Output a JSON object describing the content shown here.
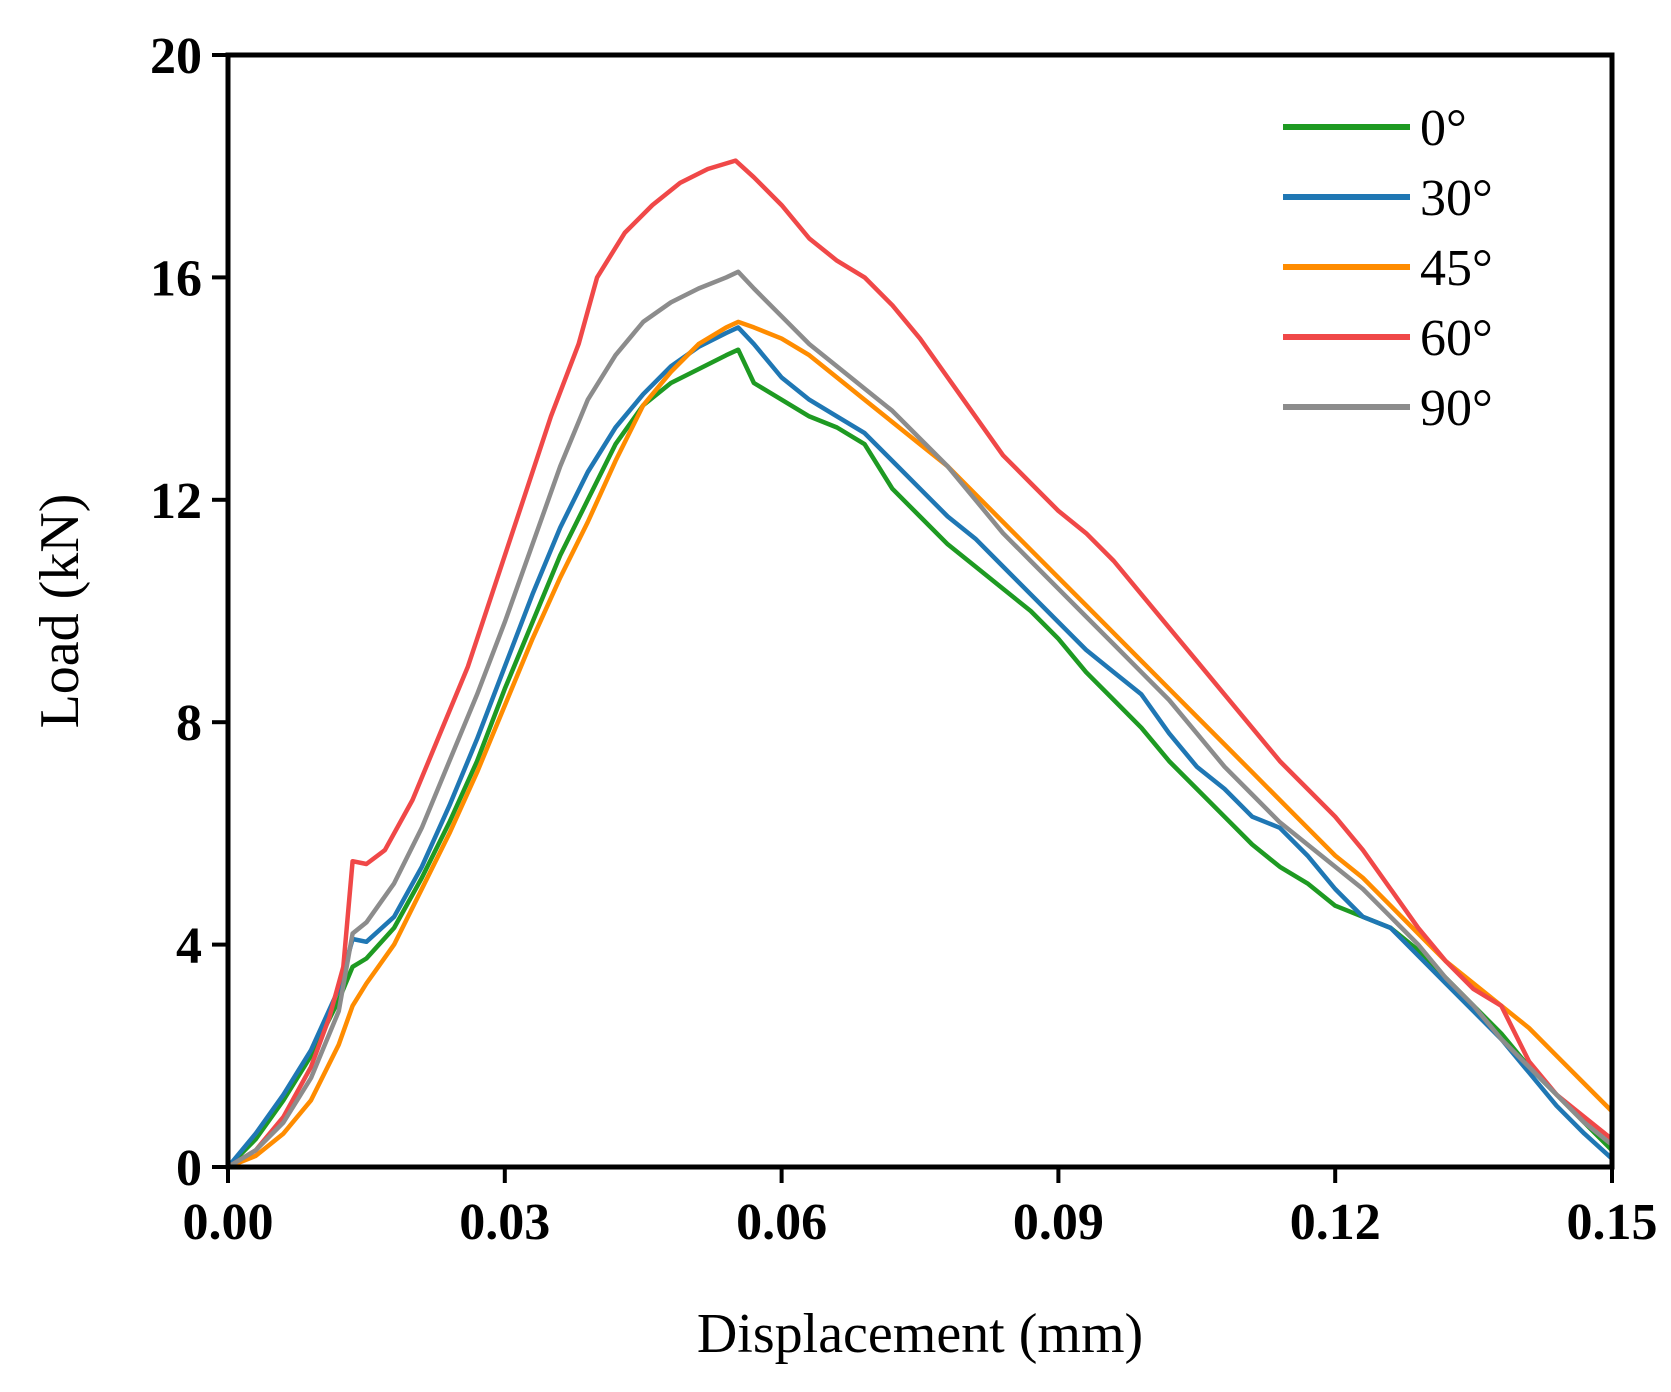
{
  "chart_data": {
    "type": "line",
    "title": "",
    "xlabel": "Displacement (mm)",
    "ylabel": "Load (kN)",
    "xlim": [
      0,
      0.15
    ],
    "ylim": [
      0,
      20
    ],
    "xticks": [
      0.0,
      0.03,
      0.06,
      0.09,
      0.12,
      0.15
    ],
    "xtick_labels": [
      "0.00",
      "0.03",
      "0.06",
      "0.09",
      "0.12",
      "0.15"
    ],
    "yticks": [
      0,
      4,
      8,
      12,
      16,
      20
    ],
    "ytick_labels": [
      "0",
      "4",
      "8",
      "12",
      "16",
      "20"
    ],
    "grid": false,
    "legend_position": "top-right",
    "series": [
      {
        "name": "0°",
        "color": "#1e9a22",
        "points": [
          [
            0.0,
            0.0
          ],
          [
            0.003,
            0.5
          ],
          [
            0.006,
            1.2
          ],
          [
            0.009,
            2.0
          ],
          [
            0.012,
            3.0
          ],
          [
            0.0135,
            3.6
          ],
          [
            0.015,
            3.75
          ],
          [
            0.018,
            4.3
          ],
          [
            0.021,
            5.2
          ],
          [
            0.024,
            6.2
          ],
          [
            0.027,
            7.3
          ],
          [
            0.03,
            8.6
          ],
          [
            0.033,
            9.8
          ],
          [
            0.036,
            11.0
          ],
          [
            0.039,
            12.0
          ],
          [
            0.042,
            13.0
          ],
          [
            0.045,
            13.7
          ],
          [
            0.048,
            14.1
          ],
          [
            0.051,
            14.35
          ],
          [
            0.054,
            14.6
          ],
          [
            0.0553,
            14.7
          ],
          [
            0.057,
            14.1
          ],
          [
            0.06,
            13.8
          ],
          [
            0.063,
            13.5
          ],
          [
            0.066,
            13.3
          ],
          [
            0.069,
            13.0
          ],
          [
            0.072,
            12.2
          ],
          [
            0.075,
            11.7
          ],
          [
            0.078,
            11.2
          ],
          [
            0.081,
            10.8
          ],
          [
            0.084,
            10.4
          ],
          [
            0.087,
            10.0
          ],
          [
            0.09,
            9.5
          ],
          [
            0.093,
            8.9
          ],
          [
            0.096,
            8.4
          ],
          [
            0.099,
            7.9
          ],
          [
            0.102,
            7.3
          ],
          [
            0.105,
            6.8
          ],
          [
            0.108,
            6.3
          ],
          [
            0.111,
            5.8
          ],
          [
            0.114,
            5.4
          ],
          [
            0.117,
            5.1
          ],
          [
            0.12,
            4.7
          ],
          [
            0.123,
            4.5
          ],
          [
            0.126,
            4.3
          ],
          [
            0.129,
            3.9
          ],
          [
            0.132,
            3.4
          ],
          [
            0.135,
            2.9
          ],
          [
            0.138,
            2.4
          ],
          [
            0.141,
            1.8
          ],
          [
            0.144,
            1.3
          ],
          [
            0.147,
            0.8
          ],
          [
            0.15,
            0.3
          ]
        ]
      },
      {
        "name": "30°",
        "color": "#1f77b4",
        "points": [
          [
            0.0,
            0.0
          ],
          [
            0.003,
            0.6
          ],
          [
            0.006,
            1.3
          ],
          [
            0.009,
            2.1
          ],
          [
            0.012,
            3.2
          ],
          [
            0.0135,
            4.1
          ],
          [
            0.015,
            4.05
          ],
          [
            0.018,
            4.5
          ],
          [
            0.021,
            5.4
          ],
          [
            0.024,
            6.5
          ],
          [
            0.027,
            7.7
          ],
          [
            0.03,
            9.0
          ],
          [
            0.033,
            10.3
          ],
          [
            0.036,
            11.5
          ],
          [
            0.039,
            12.5
          ],
          [
            0.042,
            13.3
          ],
          [
            0.045,
            13.9
          ],
          [
            0.048,
            14.4
          ],
          [
            0.051,
            14.75
          ],
          [
            0.054,
            15.0
          ],
          [
            0.0553,
            15.1
          ],
          [
            0.057,
            14.8
          ],
          [
            0.06,
            14.2
          ],
          [
            0.063,
            13.8
          ],
          [
            0.066,
            13.5
          ],
          [
            0.069,
            13.2
          ],
          [
            0.072,
            12.7
          ],
          [
            0.075,
            12.2
          ],
          [
            0.078,
            11.7
          ],
          [
            0.081,
            11.3
          ],
          [
            0.084,
            10.8
          ],
          [
            0.087,
            10.3
          ],
          [
            0.09,
            9.8
          ],
          [
            0.093,
            9.3
          ],
          [
            0.096,
            8.9
          ],
          [
            0.099,
            8.5
          ],
          [
            0.102,
            7.8
          ],
          [
            0.105,
            7.2
          ],
          [
            0.108,
            6.8
          ],
          [
            0.111,
            6.3
          ],
          [
            0.114,
            6.1
          ],
          [
            0.117,
            5.6
          ],
          [
            0.12,
            5.0
          ],
          [
            0.123,
            4.5
          ],
          [
            0.126,
            4.3
          ],
          [
            0.129,
            3.8
          ],
          [
            0.132,
            3.3
          ],
          [
            0.135,
            2.8
          ],
          [
            0.138,
            2.3
          ],
          [
            0.141,
            1.7
          ],
          [
            0.144,
            1.1
          ],
          [
            0.147,
            0.6
          ],
          [
            0.15,
            0.15
          ]
        ]
      },
      {
        "name": "45°",
        "color": "#ff8c00",
        "points": [
          [
            0.0,
            0.0
          ],
          [
            0.003,
            0.2
          ],
          [
            0.006,
            0.6
          ],
          [
            0.009,
            1.2
          ],
          [
            0.012,
            2.2
          ],
          [
            0.0135,
            2.9
          ],
          [
            0.015,
            3.3
          ],
          [
            0.018,
            4.0
          ],
          [
            0.021,
            5.0
          ],
          [
            0.024,
            6.0
          ],
          [
            0.027,
            7.1
          ],
          [
            0.03,
            8.3
          ],
          [
            0.033,
            9.5
          ],
          [
            0.036,
            10.6
          ],
          [
            0.039,
            11.6
          ],
          [
            0.042,
            12.7
          ],
          [
            0.045,
            13.7
          ],
          [
            0.048,
            14.3
          ],
          [
            0.051,
            14.8
          ],
          [
            0.054,
            15.1
          ],
          [
            0.0553,
            15.2
          ],
          [
            0.057,
            15.1
          ],
          [
            0.06,
            14.9
          ],
          [
            0.063,
            14.6
          ],
          [
            0.066,
            14.2
          ],
          [
            0.069,
            13.8
          ],
          [
            0.072,
            13.4
          ],
          [
            0.075,
            13.0
          ],
          [
            0.078,
            12.6
          ],
          [
            0.081,
            12.1
          ],
          [
            0.084,
            11.6
          ],
          [
            0.087,
            11.1
          ],
          [
            0.09,
            10.6
          ],
          [
            0.093,
            10.1
          ],
          [
            0.096,
            9.6
          ],
          [
            0.099,
            9.1
          ],
          [
            0.102,
            8.6
          ],
          [
            0.105,
            8.1
          ],
          [
            0.108,
            7.6
          ],
          [
            0.111,
            7.1
          ],
          [
            0.114,
            6.6
          ],
          [
            0.117,
            6.1
          ],
          [
            0.12,
            5.6
          ],
          [
            0.123,
            5.2
          ],
          [
            0.126,
            4.7
          ],
          [
            0.129,
            4.2
          ],
          [
            0.132,
            3.7
          ],
          [
            0.135,
            3.3
          ],
          [
            0.138,
            2.9
          ],
          [
            0.141,
            2.5
          ],
          [
            0.144,
            2.0
          ],
          [
            0.147,
            1.5
          ],
          [
            0.15,
            1.0
          ]
        ]
      },
      {
        "name": "60°",
        "color": "#f04848",
        "points": [
          [
            0.0,
            0.0
          ],
          [
            0.003,
            0.3
          ],
          [
            0.006,
            0.9
          ],
          [
            0.009,
            1.8
          ],
          [
            0.011,
            2.7
          ],
          [
            0.0125,
            3.6
          ],
          [
            0.0135,
            5.5
          ],
          [
            0.015,
            5.45
          ],
          [
            0.017,
            5.7
          ],
          [
            0.02,
            6.6
          ],
          [
            0.023,
            7.8
          ],
          [
            0.026,
            9.0
          ],
          [
            0.029,
            10.5
          ],
          [
            0.032,
            12.0
          ],
          [
            0.035,
            13.5
          ],
          [
            0.038,
            14.8
          ],
          [
            0.04,
            16.0
          ],
          [
            0.043,
            16.8
          ],
          [
            0.046,
            17.3
          ],
          [
            0.049,
            17.7
          ],
          [
            0.052,
            17.95
          ],
          [
            0.055,
            18.1
          ],
          [
            0.057,
            17.8
          ],
          [
            0.06,
            17.3
          ],
          [
            0.063,
            16.7
          ],
          [
            0.066,
            16.3
          ],
          [
            0.069,
            16.0
          ],
          [
            0.072,
            15.5
          ],
          [
            0.075,
            14.9
          ],
          [
            0.078,
            14.2
          ],
          [
            0.081,
            13.5
          ],
          [
            0.084,
            12.8
          ],
          [
            0.087,
            12.3
          ],
          [
            0.09,
            11.8
          ],
          [
            0.093,
            11.4
          ],
          [
            0.096,
            10.9
          ],
          [
            0.099,
            10.3
          ],
          [
            0.102,
            9.7
          ],
          [
            0.105,
            9.1
          ],
          [
            0.108,
            8.5
          ],
          [
            0.111,
            7.9
          ],
          [
            0.114,
            7.3
          ],
          [
            0.117,
            6.8
          ],
          [
            0.12,
            6.3
          ],
          [
            0.123,
            5.7
          ],
          [
            0.126,
            5.0
          ],
          [
            0.129,
            4.3
          ],
          [
            0.132,
            3.7
          ],
          [
            0.135,
            3.2
          ],
          [
            0.138,
            2.9
          ],
          [
            0.141,
            1.9
          ],
          [
            0.144,
            1.3
          ],
          [
            0.147,
            0.9
          ],
          [
            0.15,
            0.5
          ]
        ]
      },
      {
        "name": "90°",
        "color": "#8c8c8c",
        "points": [
          [
            0.0,
            0.0
          ],
          [
            0.003,
            0.3
          ],
          [
            0.006,
            0.8
          ],
          [
            0.009,
            1.6
          ],
          [
            0.012,
            2.8
          ],
          [
            0.0135,
            4.2
          ],
          [
            0.015,
            4.4
          ],
          [
            0.018,
            5.1
          ],
          [
            0.021,
            6.1
          ],
          [
            0.024,
            7.3
          ],
          [
            0.027,
            8.5
          ],
          [
            0.03,
            9.8
          ],
          [
            0.033,
            11.2
          ],
          [
            0.036,
            12.6
          ],
          [
            0.039,
            13.8
          ],
          [
            0.042,
            14.6
          ],
          [
            0.045,
            15.2
          ],
          [
            0.048,
            15.55
          ],
          [
            0.051,
            15.8
          ],
          [
            0.054,
            16.0
          ],
          [
            0.0553,
            16.1
          ],
          [
            0.057,
            15.8
          ],
          [
            0.06,
            15.3
          ],
          [
            0.063,
            14.8
          ],
          [
            0.066,
            14.4
          ],
          [
            0.069,
            14.0
          ],
          [
            0.072,
            13.6
          ],
          [
            0.075,
            13.1
          ],
          [
            0.078,
            12.6
          ],
          [
            0.081,
            12.0
          ],
          [
            0.084,
            11.4
          ],
          [
            0.087,
            10.9
          ],
          [
            0.09,
            10.4
          ],
          [
            0.093,
            9.9
          ],
          [
            0.096,
            9.4
          ],
          [
            0.099,
            8.9
          ],
          [
            0.102,
            8.4
          ],
          [
            0.105,
            7.8
          ],
          [
            0.108,
            7.2
          ],
          [
            0.111,
            6.7
          ],
          [
            0.114,
            6.2
          ],
          [
            0.117,
            5.8
          ],
          [
            0.12,
            5.4
          ],
          [
            0.123,
            5.0
          ],
          [
            0.126,
            4.5
          ],
          [
            0.129,
            4.0
          ],
          [
            0.132,
            3.4
          ],
          [
            0.135,
            2.9
          ],
          [
            0.138,
            2.3
          ],
          [
            0.141,
            1.8
          ],
          [
            0.144,
            1.3
          ],
          [
            0.147,
            0.8
          ],
          [
            0.15,
            0.4
          ]
        ]
      }
    ]
  }
}
